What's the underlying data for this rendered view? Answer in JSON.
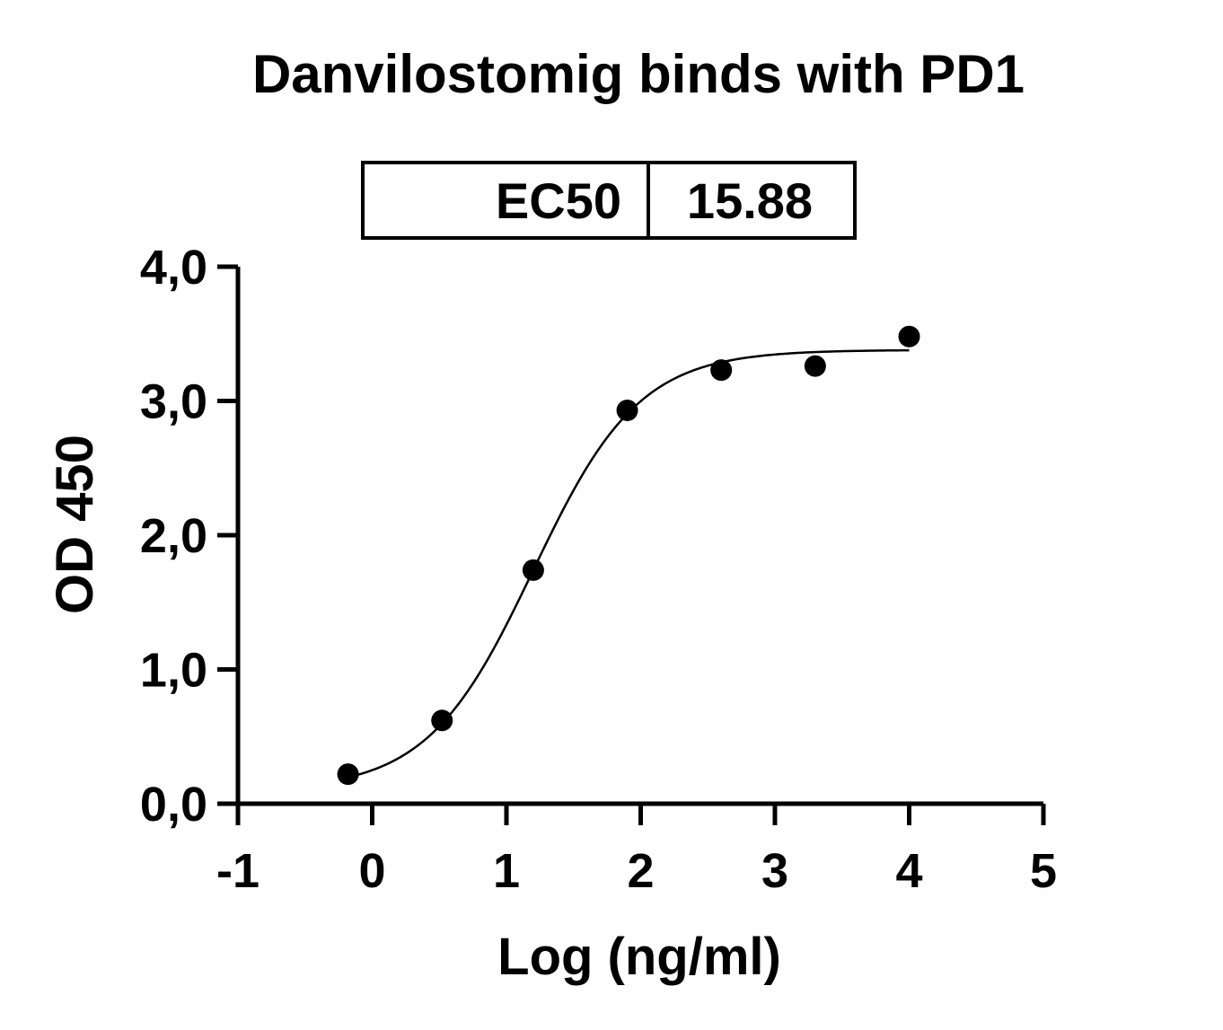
{
  "chart_data": {
    "type": "scatter",
    "title": "Danvilostomig binds with PD1",
    "xlabel": "Log (ng/ml)",
    "ylabel": "OD 450",
    "xlim": [
      -1,
      5
    ],
    "ylim": [
      0,
      4
    ],
    "x_ticks": [
      "-1",
      "0",
      "1",
      "2",
      "3",
      "4",
      "5"
    ],
    "y_ticks": [
      "0,0",
      "1,0",
      "2,0",
      "3,0",
      "4,0"
    ],
    "grid": false,
    "points": [
      {
        "x": -0.18,
        "y": 0.22
      },
      {
        "x": 0.52,
        "y": 0.62
      },
      {
        "x": 1.2,
        "y": 1.74
      },
      {
        "x": 1.9,
        "y": 2.93
      },
      {
        "x": 2.6,
        "y": 3.23
      },
      {
        "x": 3.3,
        "y": 3.26
      },
      {
        "x": 4.0,
        "y": 3.48
      }
    ],
    "fit": {
      "model": "four-parameter logistic",
      "bottom": 0.1,
      "top": 3.38,
      "log_ec50": 1.2,
      "hill_slope": 1.1,
      "x_range": [
        -0.18,
        4.0
      ]
    },
    "results_table": {
      "label": "EC50",
      "value": "15.88"
    }
  }
}
